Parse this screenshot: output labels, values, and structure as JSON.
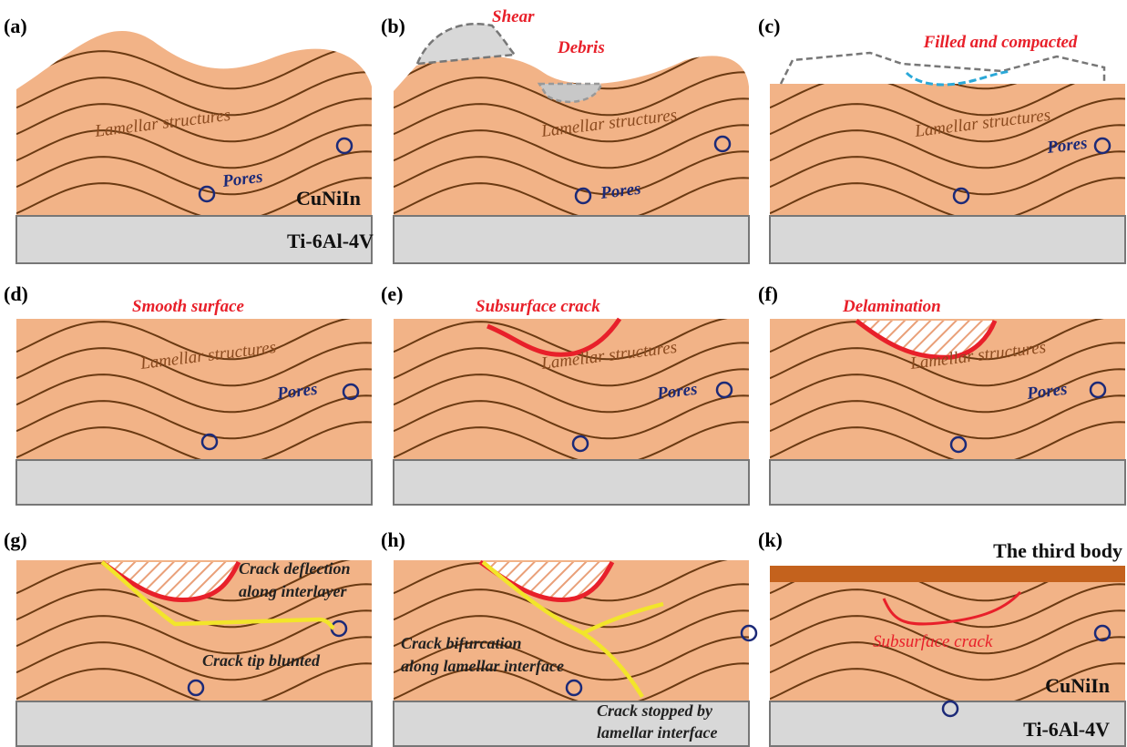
{
  "panels": [
    {
      "label": "(a)",
      "texts": [
        "Lamellar structures",
        "Pores",
        "CuNiIn",
        "Ti-6Al-4V"
      ]
    },
    {
      "label": "(b)",
      "texts": [
        "Shear",
        "Debris",
        "Lamellar structures",
        "Pores"
      ]
    },
    {
      "label": "(c)",
      "texts": [
        "Filled and compacted",
        "Lamellar structures",
        "Pores"
      ]
    },
    {
      "label": "(d)",
      "texts": [
        "Smooth surface",
        "Lamellar structures",
        "Pores"
      ]
    },
    {
      "label": "(e)",
      "texts": [
        "Subsurface crack",
        "Lamellar structures",
        "Pores"
      ]
    },
    {
      "label": "(f)",
      "texts": [
        "Delamination",
        "Lamellar structures",
        "Pores"
      ]
    },
    {
      "label": "(g)",
      "texts": [
        "Crack deflection",
        "along interlayer",
        "Crack tip blunted"
      ]
    },
    {
      "label": "(h)",
      "texts": [
        "Crack bifurcation",
        "along lamellar interface",
        "Crack stopped by",
        "lamellar interface"
      ]
    },
    {
      "label": "(k)",
      "texts": [
        "The third body",
        "Subsurface crack",
        "CuNiIn",
        "Ti-6Al-4V"
      ]
    }
  ]
}
